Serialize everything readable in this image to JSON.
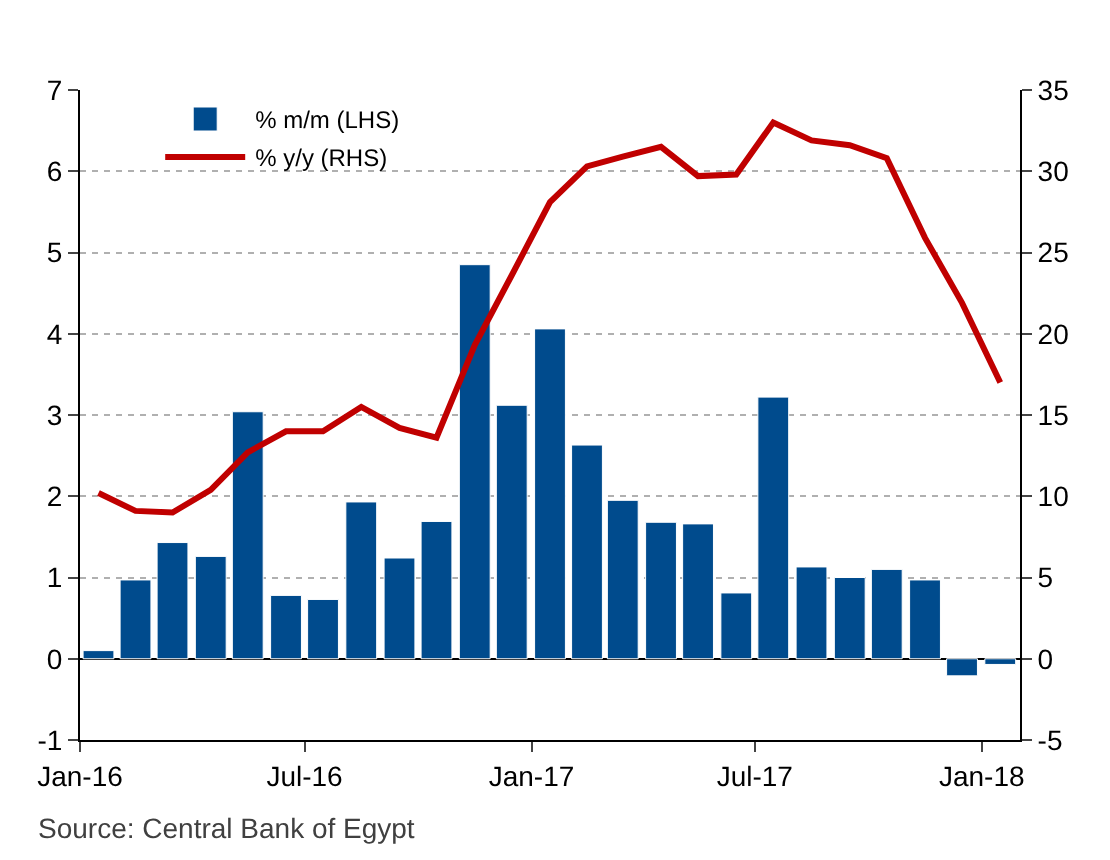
{
  "chart_data": {
    "type": "bar",
    "x": [
      "2016-01-16",
      "2016-02-15",
      "2016-03-16",
      "2016-04-16",
      "2016-05-16",
      "2016-06-16",
      "2016-07-16",
      "2016-08-16",
      "2016-09-16",
      "2016-10-16",
      "2016-11-16",
      "2016-12-16",
      "2017-01-16",
      "2017-02-15",
      "2017-03-16",
      "2017-04-16",
      "2017-05-16",
      "2017-06-16",
      "2017-07-16",
      "2017-08-16",
      "2017-09-16",
      "2017-10-16",
      "2017-11-16",
      "2017-12-16",
      "2018-01-16"
    ],
    "series": [
      {
        "name": "% m/m (LHS)",
        "color": "#004b8d",
        "values": [
          0.1,
          0.97,
          1.43,
          1.26,
          3.04,
          0.78,
          0.73,
          1.93,
          1.24,
          1.69,
          4.85,
          3.12,
          4.06,
          2.63,
          1.95,
          1.68,
          1.66,
          0.81,
          3.22,
          1.13,
          1.0,
          1.1,
          0.97,
          -0.21,
          -0.07
        ]
      },
      {
        "name": "% y/y (RHS)",
        "type": "line",
        "axis": "y2",
        "color": "#c00000",
        "values": [
          10.2,
          9.1,
          9.0,
          10.4,
          12.7,
          14.0,
          14.0,
          15.5,
          14.2,
          13.6,
          19.3,
          23.6,
          28.1,
          30.3,
          30.9,
          31.5,
          29.7,
          29.8,
          33.0,
          31.9,
          31.6,
          30.8,
          25.9,
          21.9,
          17.0
        ]
      }
    ],
    "xlim": [
      "2016-01-01",
      "2018-02-01"
    ],
    "xticks": [
      {
        "value": "2016-01-01",
        "label": "Jan-16"
      },
      {
        "value": "2016-07-01",
        "label": "Jul-16"
      },
      {
        "value": "2017-01-01",
        "label": "Jan-17"
      },
      {
        "value": "2017-07-01",
        "label": "Jul-17"
      },
      {
        "value": "2018-01-01",
        "label": "Jan-18"
      }
    ],
    "ylim": [
      -1,
      7
    ],
    "yticks": [
      -1,
      0,
      1,
      2,
      3,
      4,
      5,
      6,
      7
    ],
    "y2lim": [
      -5,
      35
    ],
    "y2ticks": [
      -5,
      0,
      5,
      10,
      15,
      20,
      25,
      30,
      35
    ],
    "grid": "y",
    "legend": "top left",
    "marker": "none",
    "line_style": "solid",
    "annotations": [
      "Source: Central Bank of Egypt"
    ]
  }
}
